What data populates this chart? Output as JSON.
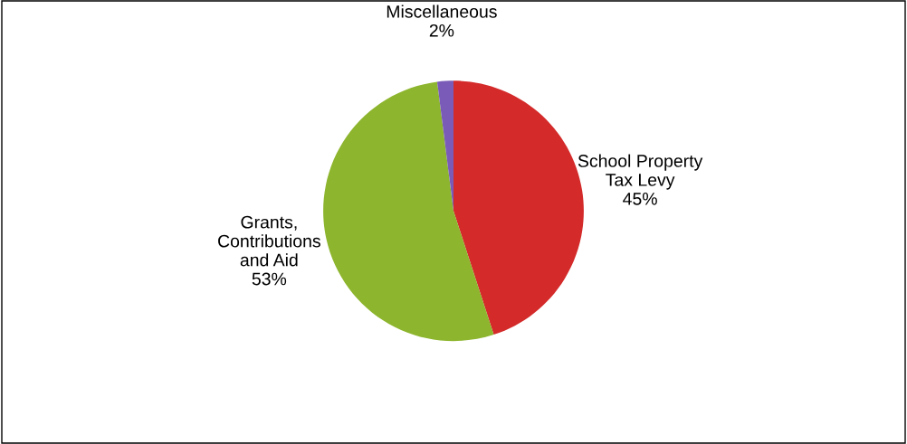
{
  "chart_data": {
    "type": "pie",
    "categories": [
      "School Property\nTax Levy",
      "Grants,\nContributions\nand Aid",
      "Miscellaneous"
    ],
    "values": [
      45,
      53,
      2
    ],
    "colors": [
      "#d42a2a",
      "#8db52d",
      "#7a5cb8"
    ],
    "value_labels": [
      "45%",
      "53%",
      "2%"
    ]
  }
}
